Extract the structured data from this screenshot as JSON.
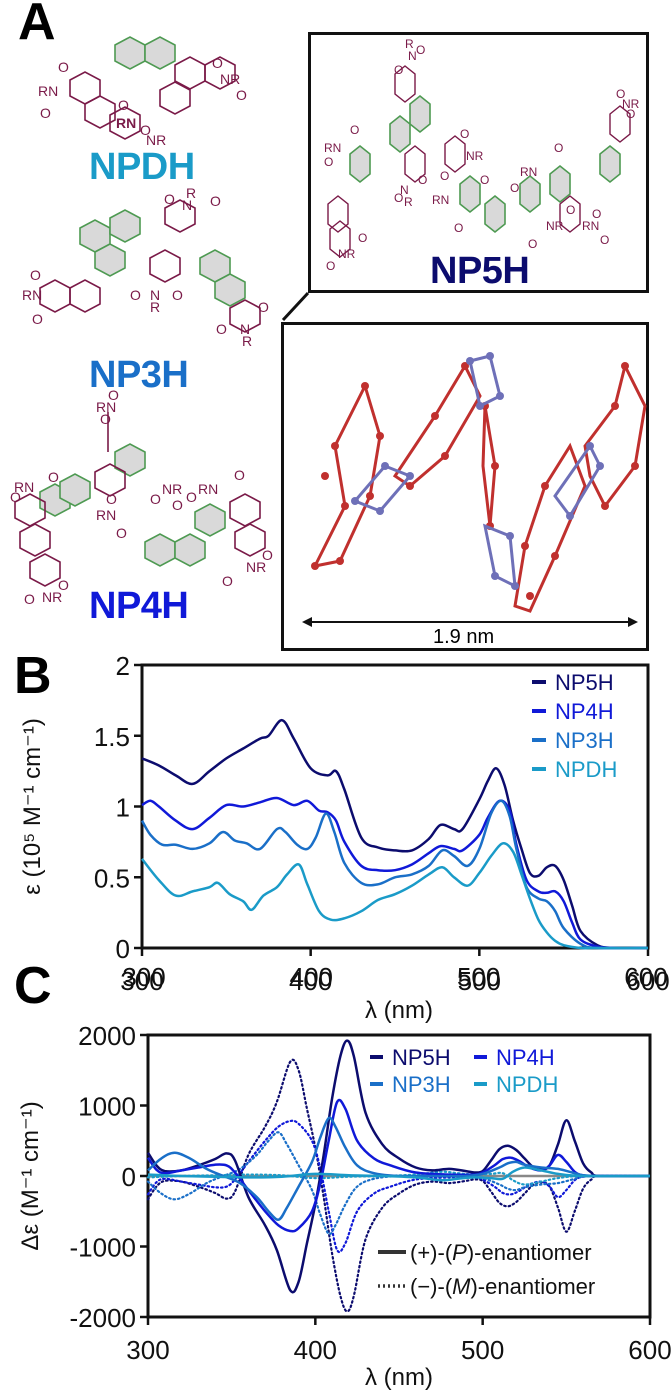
{
  "panels": {
    "a": {
      "letter": "A",
      "molecules": [
        {
          "name": "NPDH",
          "color": "#1a9bc8"
        },
        {
          "name": "NP3H",
          "color": "#1a6fc8"
        },
        {
          "name": "NP4H",
          "color": "#1019d8"
        },
        {
          "name": "NP5H",
          "color": "#0c0c6e"
        }
      ],
      "scale_bar_label": "1.9 nm",
      "structure_colors": {
        "imide": "#7a1a48",
        "helicene": "#4e9a52",
        "helicene_fill": "#d9d9d9",
        "model_pdi": "#c0302e",
        "model_helicene": "#6e70b8"
      }
    },
    "b": {
      "letter": "B"
    },
    "c": {
      "letter": "C"
    }
  },
  "chart_data": [
    {
      "id": "absorption",
      "type": "line",
      "title": "",
      "xlabel": "λ (nm)",
      "ylabel": "ε (10⁵ M⁻¹ cm⁻¹)",
      "xlim": [
        300,
        600
      ],
      "ylim": [
        0,
        2
      ],
      "xticks": [
        300,
        400,
        500,
        600
      ],
      "yticks": [
        0,
        0.5,
        1,
        1.5,
        2
      ],
      "ytick_labels": [
        "0",
        "0.5",
        "1",
        "1.5",
        "2"
      ],
      "grid": false,
      "legend_position": "top-right",
      "series": [
        {
          "name": "NP5H",
          "color": "#0c0c6e",
          "x": [
            300,
            310,
            320,
            330,
            340,
            350,
            360,
            370,
            375,
            383,
            390,
            400,
            410,
            415,
            420,
            430,
            440,
            450,
            460,
            470,
            477,
            485,
            490,
            500,
            505,
            510,
            515,
            520,
            525,
            530,
            535,
            540,
            545,
            550,
            555,
            560,
            570,
            580,
            600
          ],
          "y": [
            1.34,
            1.29,
            1.22,
            1.16,
            1.25,
            1.34,
            1.41,
            1.48,
            1.5,
            1.61,
            1.48,
            1.27,
            1.22,
            1.25,
            1.12,
            0.78,
            0.71,
            0.69,
            0.69,
            0.77,
            0.87,
            0.84,
            0.84,
            1.05,
            1.18,
            1.27,
            1.15,
            0.9,
            0.7,
            0.53,
            0.51,
            0.57,
            0.58,
            0.48,
            0.3,
            0.12,
            0.02,
            0.0,
            0.0
          ]
        },
        {
          "name": "NP4H",
          "color": "#1019d8",
          "x": [
            300,
            305,
            310,
            320,
            330,
            340,
            350,
            360,
            370,
            380,
            390,
            398,
            405,
            410,
            415,
            420,
            430,
            440,
            450,
            460,
            470,
            477,
            485,
            490,
            500,
            505,
            512,
            518,
            522,
            528,
            535,
            540,
            545,
            550,
            555,
            560,
            570,
            580,
            600
          ],
          "y": [
            1.01,
            1.04,
            1.0,
            0.9,
            0.84,
            0.92,
            1.01,
            1.0,
            1.03,
            1.06,
            1.01,
            1.04,
            0.97,
            0.96,
            0.9,
            0.75,
            0.58,
            0.55,
            0.55,
            0.59,
            0.67,
            0.72,
            0.7,
            0.69,
            0.8,
            0.92,
            1.04,
            0.97,
            0.73,
            0.48,
            0.4,
            0.39,
            0.4,
            0.33,
            0.18,
            0.06,
            0.01,
            0.0,
            0.0
          ]
        },
        {
          "name": "NP3H",
          "color": "#1a6fc8",
          "x": [
            300,
            305,
            312,
            320,
            330,
            340,
            348,
            355,
            362,
            370,
            380,
            385,
            392,
            398,
            403,
            409,
            414,
            420,
            430,
            440,
            450,
            460,
            470,
            478,
            485,
            493,
            500,
            507,
            513,
            518,
            522,
            528,
            535,
            540,
            545,
            550,
            560,
            570,
            600
          ],
          "y": [
            0.9,
            0.8,
            0.73,
            0.73,
            0.7,
            0.74,
            0.82,
            0.76,
            0.74,
            0.7,
            0.84,
            0.82,
            0.73,
            0.7,
            0.78,
            0.95,
            0.82,
            0.6,
            0.46,
            0.45,
            0.5,
            0.52,
            0.58,
            0.69,
            0.65,
            0.58,
            0.7,
            0.95,
            1.04,
            0.93,
            0.7,
            0.43,
            0.35,
            0.33,
            0.26,
            0.14,
            0.03,
            0.0,
            0.0
          ]
        },
        {
          "name": "NPDH",
          "color": "#1a9bc8",
          "x": [
            300,
            310,
            320,
            330,
            340,
            345,
            352,
            360,
            365,
            372,
            380,
            386,
            393,
            398,
            405,
            412,
            420,
            430,
            440,
            450,
            460,
            470,
            478,
            485,
            493,
            500,
            507,
            514,
            520,
            525,
            530,
            535,
            540,
            545,
            550,
            560,
            570,
            600
          ],
          "y": [
            0.63,
            0.48,
            0.37,
            0.4,
            0.43,
            0.46,
            0.38,
            0.33,
            0.27,
            0.37,
            0.43,
            0.52,
            0.59,
            0.45,
            0.26,
            0.2,
            0.21,
            0.26,
            0.34,
            0.38,
            0.44,
            0.52,
            0.57,
            0.5,
            0.44,
            0.53,
            0.65,
            0.74,
            0.68,
            0.52,
            0.35,
            0.2,
            0.11,
            0.05,
            0.02,
            0.0,
            0.0,
            0.0
          ]
        }
      ]
    },
    {
      "id": "cd",
      "type": "line",
      "title": "",
      "xlabel": "λ (nm)",
      "ylabel": "Δε (M⁻¹ cm⁻¹)",
      "xlim": [
        300,
        600
      ],
      "ylim": [
        -2000,
        2000
      ],
      "xticks": [
        300,
        400,
        500,
        600
      ],
      "yticks": [
        -2000,
        -1000,
        0,
        1000,
        2000
      ],
      "ytick_labels": [
        "-2000",
        "-1000",
        "0",
        "1000",
        "2000"
      ],
      "top_xticks": [
        300,
        400,
        500,
        600
      ],
      "top_xlabel": "λ (nm)",
      "grid": false,
      "legend_position": "top-right",
      "linestyle_legend": [
        {
          "label_prefix": "(+)-(",
          "label_italic": "P",
          "label_suffix": ")-enantiomer",
          "style": "solid"
        },
        {
          "label_prefix": "(−)-(",
          "label_italic": "M",
          "label_suffix": ")-enantiomer",
          "style": "dotted"
        }
      ],
      "zero_line_color": "#888888",
      "series": [
        {
          "name": "NP5H",
          "color": "#0c0c6e",
          "x": [
            300,
            305,
            310,
            320,
            330,
            340,
            347,
            352,
            360,
            370,
            377,
            385,
            390,
            395,
            400,
            405,
            410,
            415,
            419,
            423,
            430,
            440,
            450,
            460,
            470,
            480,
            490,
            495,
            500,
            505,
            510,
            515,
            520,
            525,
            530,
            535,
            540,
            545,
            550,
            555,
            560,
            565,
            570,
            600
          ],
          "y": [
            330,
            150,
            70,
            80,
            150,
            240,
            320,
            220,
            -300,
            -700,
            -1050,
            -1620,
            -1500,
            -950,
            -400,
            300,
            1100,
            1700,
            1920,
            1700,
            900,
            450,
            250,
            120,
            80,
            100,
            70,
            50,
            70,
            220,
            380,
            430,
            370,
            250,
            130,
            90,
            150,
            450,
            790,
            500,
            180,
            50,
            0,
            0
          ]
        },
        {
          "name": "NP4H",
          "color": "#1019d8",
          "x": [
            300,
            305,
            310,
            320,
            330,
            340,
            347,
            352,
            360,
            370,
            378,
            385,
            390,
            398,
            403,
            408,
            413,
            418,
            425,
            435,
            445,
            460,
            480,
            495,
            500,
            507,
            512,
            517,
            522,
            528,
            535,
            540,
            545,
            550,
            555,
            560,
            570,
            600
          ],
          "y": [
            260,
            90,
            40,
            80,
            120,
            160,
            150,
            50,
            -200,
            -500,
            -700,
            -780,
            -740,
            -500,
            -100,
            500,
            1050,
            950,
            500,
            250,
            150,
            50,
            20,
            20,
            50,
            150,
            240,
            260,
            210,
            120,
            80,
            150,
            300,
            200,
            60,
            10,
            0,
            0
          ]
        },
        {
          "name": "NP3H",
          "color": "#1a6fc8",
          "x": [
            300,
            308,
            316,
            325,
            335,
            345,
            355,
            365,
            372,
            378,
            383,
            390,
            398,
            403,
            408,
            412,
            418,
            425,
            435,
            450,
            470,
            490,
            500,
            510,
            515,
            520,
            525,
            535,
            545,
            555,
            560,
            570,
            600
          ],
          "y": [
            80,
            250,
            330,
            250,
            100,
            0,
            -100,
            -300,
            -500,
            -620,
            -450,
            -150,
            200,
            550,
            820,
            700,
            400,
            150,
            40,
            0,
            0,
            0,
            30,
            120,
            180,
            200,
            160,
            120,
            100,
            40,
            10,
            0,
            0
          ]
        },
        {
          "name": "NPDH",
          "color": "#1a9bc8",
          "x": [
            300,
            310,
            320,
            340,
            360,
            380,
            400,
            420,
            440,
            460,
            475,
            485,
            495,
            505,
            512,
            518,
            525,
            535,
            545,
            560,
            600
          ],
          "y": [
            20,
            10,
            0,
            -10,
            -20,
            -10,
            30,
            10,
            0,
            -20,
            -60,
            -40,
            -20,
            -30,
            -40,
            60,
            120,
            80,
            30,
            0,
            0
          ]
        }
      ],
      "mirror_series_note": "dotted curves are the (−)-(M)-enantiomer spectra, mirror images of the solid curves"
    }
  ]
}
